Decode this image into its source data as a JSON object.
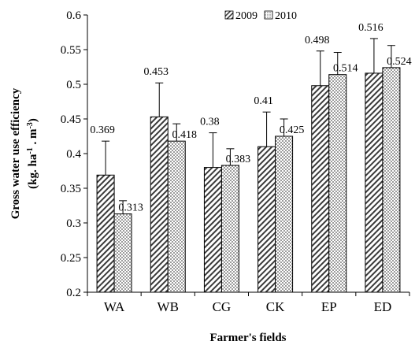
{
  "chart_data": {
    "type": "bar",
    "title": "",
    "xlabel": "Farmer's fields",
    "ylabel_line1": "Gross water use efficiency",
    "ylabel_line2": {
      "prefix": "(kg. ha",
      "sup1": "-1",
      "middle": " . m",
      "sup2": "-3",
      "suffix": ")"
    },
    "ylim": [
      0.2,
      0.6
    ],
    "yticks": [
      0.2,
      0.25,
      0.3,
      0.35,
      0.4,
      0.45,
      0.5,
      0.55,
      0.6
    ],
    "ytick_labels": [
      "0.2",
      "0.25",
      "0.3",
      "0.35",
      "0.4",
      "0.45",
      "0.5",
      "0.55",
      "0.6"
    ],
    "grid": false,
    "legend_position": "top-right",
    "categories": [
      "WA",
      "WB",
      "CG",
      "CK",
      "EP",
      "ED"
    ],
    "series": [
      {
        "name": "2009",
        "pattern": "diagonal-hatch",
        "values": [
          0.369,
          0.453,
          0.38,
          0.41,
          0.498,
          0.516
        ],
        "value_labels": [
          "0.369",
          "0.453",
          "0.38",
          "0.41",
          "0.498",
          "0.516"
        ],
        "error_upper": [
          0.418,
          0.502,
          0.43,
          0.46,
          0.548,
          0.566
        ]
      },
      {
        "name": "2010",
        "pattern": "dots",
        "values": [
          0.313,
          0.418,
          0.383,
          0.425,
          0.514,
          0.524
        ],
        "value_labels": [
          "0.313",
          "0.418",
          "0.383",
          "0.425",
          "0.514",
          "0.524"
        ],
        "error_upper": [
          0.332,
          0.443,
          0.407,
          0.45,
          0.546,
          0.556
        ]
      }
    ]
  }
}
